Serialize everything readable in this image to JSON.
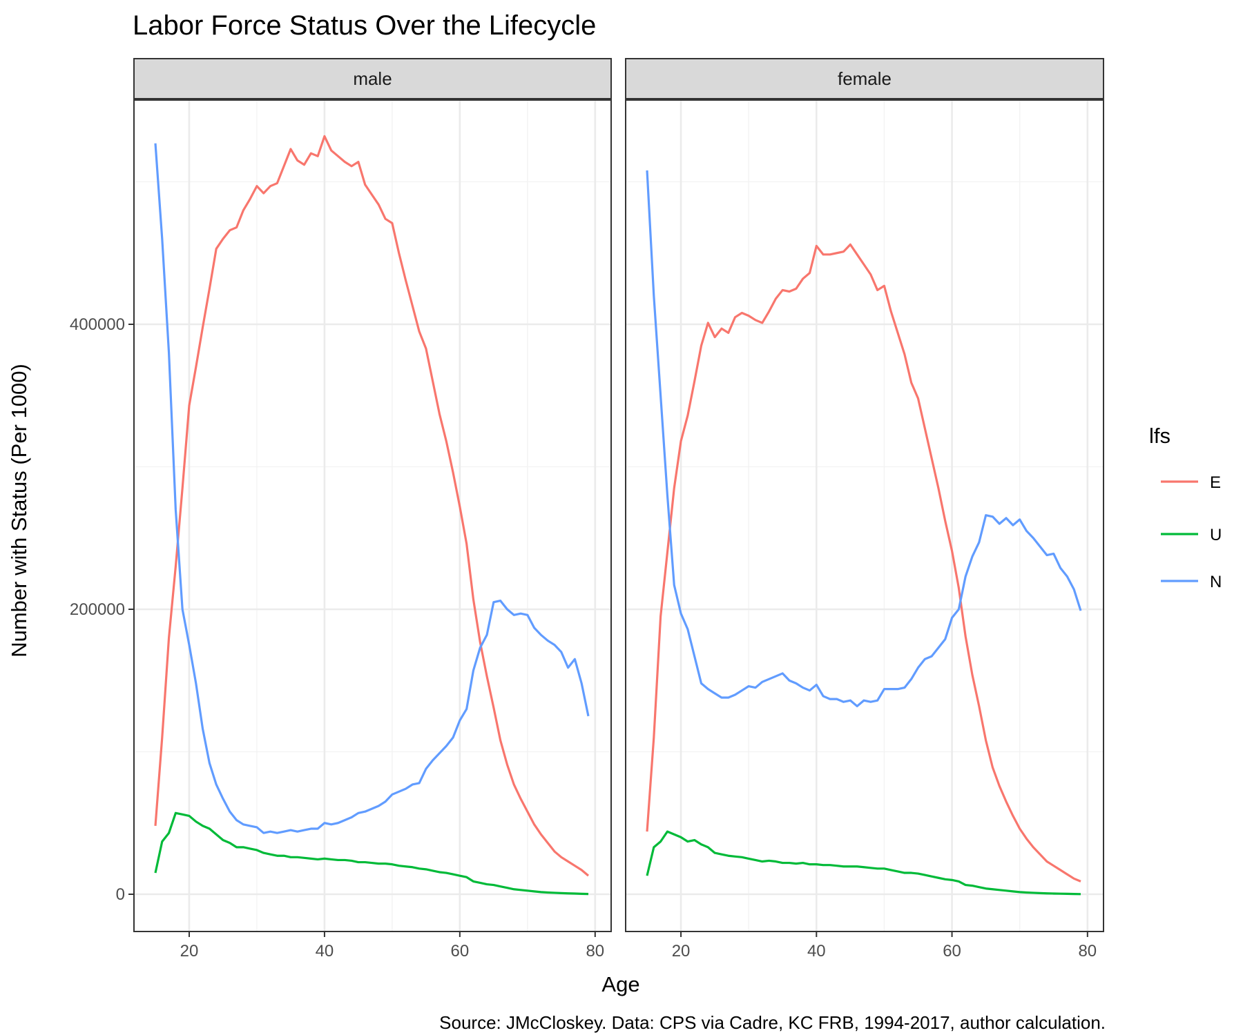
{
  "chart_data": {
    "type": "line",
    "title": "Labor Force Status Over the Lifecycle",
    "xlabel": "Age",
    "ylabel": "Number with Status (Per 1000)",
    "caption": "Source: JMcCloskey. Data: CPS via Cadre, KC FRB, 1994-2017, author calculation.",
    "xlim": [
      15,
      79
    ],
    "ylim": [
      -25000,
      556000
    ],
    "x_ticks": [
      20,
      40,
      60,
      80
    ],
    "x_tick_labels": [
      "20",
      "40",
      "60",
      "80"
    ],
    "y_ticks": [
      0,
      200000,
      400000
    ],
    "y_tick_labels": [
      "0",
      "200000",
      "400000"
    ],
    "grid": true,
    "legend": {
      "title": "lfs",
      "position": "right",
      "entries": [
        {
          "label": "E",
          "color": "#F8766D"
        },
        {
          "label": "U",
          "color": "#00BA38"
        },
        {
          "label": "N",
          "color": "#619CFF"
        }
      ]
    },
    "facets": [
      {
        "label": "male",
        "series": [
          {
            "name": "E",
            "color": "#F8766D",
            "x": [
              15,
              16,
              17,
              18,
              19,
              20,
              21,
              22,
              23,
              24,
              25,
              26,
              27,
              28,
              29,
              30,
              31,
              32,
              33,
              34,
              35,
              36,
              37,
              38,
              39,
              40,
              41,
              42,
              43,
              44,
              45,
              46,
              47,
              48,
              49,
              50,
              51,
              52,
              53,
              54,
              55,
              56,
              57,
              58,
              59,
              60,
              61,
              62,
              63,
              64,
              65,
              66,
              67,
              68,
              69,
              70,
              71,
              72,
              73,
              74,
              75,
              76,
              77,
              78,
              79
            ],
            "y": [
              48000,
              110000,
              180000,
              230000,
              285000,
              343000,
              370000,
              398000,
              425000,
              453000,
              460000,
              466000,
              468000,
              480000,
              488000,
              497000,
              492000,
              497000,
              499000,
              511000,
              523000,
              515000,
              512000,
              520000,
              518000,
              532000,
              522000,
              518000,
              514000,
              511000,
              514000,
              498000,
              491000,
              484000,
              474000,
              471000,
              450000,
              431000,
              413000,
              395000,
              383000,
              360000,
              337000,
              318000,
              296000,
              272000,
              246000,
              207000,
              177000,
              153000,
              131000,
              108000,
              91000,
              77000,
              67000,
              58000,
              49000,
              42000,
              36000,
              30000,
              26000,
              23000,
              20000,
              17000,
              13000
            ]
          },
          {
            "name": "U",
            "color": "#00BA38",
            "x": [
              15,
              16,
              17,
              18,
              19,
              20,
              21,
              22,
              23,
              24,
              25,
              26,
              27,
              28,
              29,
              30,
              31,
              32,
              33,
              34,
              35,
              36,
              37,
              38,
              39,
              40,
              41,
              42,
              43,
              44,
              45,
              46,
              47,
              48,
              49,
              50,
              51,
              52,
              53,
              54,
              55,
              56,
              57,
              58,
              59,
              60,
              61,
              62,
              63,
              64,
              65,
              66,
              67,
              68,
              69,
              70,
              71,
              72,
              73,
              74,
              75,
              76,
              77,
              78,
              79
            ],
            "y": [
              15000,
              37000,
              43000,
              57000,
              56000,
              55000,
              51000,
              48000,
              46000,
              42000,
              38000,
              36000,
              33000,
              33000,
              32000,
              31000,
              29000,
              28000,
              27000,
              27000,
              26000,
              26000,
              25500,
              25000,
              24500,
              25000,
              24500,
              24000,
              24000,
              23500,
              22500,
              22500,
              22000,
              21500,
              21500,
              21000,
              20000,
              19500,
              19000,
              18000,
              17500,
              16500,
              15500,
              15000,
              14000,
              13000,
              12000,
              9000,
              8000,
              7000,
              6500,
              5500,
              4500,
              3500,
              3000,
              2500,
              2000,
              1500,
              1200,
              1000,
              800,
              600,
              500,
              300,
              200
            ]
          },
          {
            "name": "N",
            "color": "#619CFF",
            "x": [
              15,
              16,
              17,
              18,
              19,
              20,
              21,
              22,
              23,
              24,
              25,
              26,
              27,
              28,
              29,
              30,
              31,
              32,
              33,
              34,
              35,
              36,
              37,
              38,
              39,
              40,
              41,
              42,
              43,
              44,
              45,
              46,
              47,
              48,
              49,
              50,
              51,
              52,
              53,
              54,
              55,
              56,
              57,
              58,
              59,
              60,
              61,
              62,
              63,
              64,
              65,
              66,
              67,
              68,
              69,
              70,
              71,
              72,
              73,
              74,
              75,
              76,
              77,
              78,
              79
            ],
            "y": [
              527000,
              460000,
              380000,
              270000,
              200000,
              175000,
              148000,
              116000,
              92000,
              77000,
              67000,
              58000,
              52000,
              49000,
              48000,
              47000,
              43000,
              44000,
              43000,
              44000,
              45000,
              44000,
              45000,
              46000,
              46000,
              50000,
              49000,
              50000,
              52000,
              54000,
              57000,
              58000,
              60000,
              62000,
              65000,
              70000,
              72000,
              74000,
              77000,
              78000,
              88000,
              94000,
              99000,
              104000,
              110000,
              122000,
              130000,
              157000,
              173000,
              182000,
              205000,
              206000,
              200000,
              196000,
              197000,
              196000,
              187000,
              182000,
              178000,
              175000,
              170000,
              159000,
              165000,
              148000,
              125000
            ]
          }
        ]
      },
      {
        "label": "female",
        "series": [
          {
            "name": "E",
            "color": "#F8766D",
            "x": [
              15,
              16,
              17,
              18,
              19,
              20,
              21,
              22,
              23,
              24,
              25,
              26,
              27,
              28,
              29,
              30,
              31,
              32,
              33,
              34,
              35,
              36,
              37,
              38,
              39,
              40,
              41,
              42,
              43,
              44,
              45,
              46,
              47,
              48,
              49,
              50,
              51,
              52,
              53,
              54,
              55,
              56,
              57,
              58,
              59,
              60,
              61,
              62,
              63,
              64,
              65,
              66,
              67,
              68,
              69,
              70,
              71,
              72,
              73,
              74,
              75,
              76,
              77,
              78,
              79
            ],
            "y": [
              44000,
              110000,
              195000,
              240000,
              285000,
              318000,
              336000,
              360000,
              385000,
              401000,
              391000,
              397000,
              394000,
              405000,
              408000,
              406000,
              403000,
              401000,
              409000,
              418000,
              424000,
              423000,
              425000,
              432000,
              436000,
              455000,
              449000,
              449000,
              450000,
              451000,
              456000,
              449000,
              442000,
              435000,
              424000,
              427000,
              409000,
              394000,
              379000,
              359000,
              348000,
              327000,
              306000,
              285000,
              262000,
              241000,
              215000,
              181000,
              154000,
              132000,
              108000,
              89000,
              76000,
              65000,
              55000,
              46000,
              39000,
              33000,
              28000,
              23000,
              20000,
              17000,
              14000,
              11000,
              9000
            ]
          },
          {
            "name": "U",
            "color": "#00BA38",
            "x": [
              15,
              16,
              17,
              18,
              19,
              20,
              21,
              22,
              23,
              24,
              25,
              26,
              27,
              28,
              29,
              30,
              31,
              32,
              33,
              34,
              35,
              36,
              37,
              38,
              39,
              40,
              41,
              42,
              43,
              44,
              45,
              46,
              47,
              48,
              49,
              50,
              51,
              52,
              53,
              54,
              55,
              56,
              57,
              58,
              59,
              60,
              61,
              62,
              63,
              64,
              65,
              66,
              67,
              68,
              69,
              70,
              71,
              72,
              73,
              74,
              75,
              76,
              77,
              78,
              79
            ],
            "y": [
              13000,
              33000,
              37000,
              44000,
              42000,
              40000,
              37000,
              38000,
              35000,
              33000,
              29000,
              28000,
              27000,
              26500,
              26000,
              25000,
              24000,
              23000,
              23500,
              23000,
              22000,
              22000,
              21500,
              22000,
              21000,
              21000,
              20500,
              20500,
              20000,
              19500,
              19500,
              19500,
              19000,
              18500,
              18000,
              18000,
              17000,
              16000,
              15000,
              15000,
              14500,
              13500,
              12500,
              11500,
              10500,
              10000,
              9000,
              6500,
              6000,
              5000,
              4000,
              3500,
              3000,
              2500,
              2000,
              1500,
              1200,
              1000,
              800,
              600,
              500,
              400,
              300,
              200,
              100
            ]
          },
          {
            "name": "N",
            "color": "#619CFF",
            "x": [
              15,
              16,
              17,
              18,
              19,
              20,
              21,
              22,
              23,
              24,
              25,
              26,
              27,
              28,
              29,
              30,
              31,
              32,
              33,
              34,
              35,
              36,
              37,
              38,
              39,
              40,
              41,
              42,
              43,
              44,
              45,
              46,
              47,
              48,
              49,
              50,
              51,
              52,
              53,
              54,
              55,
              56,
              57,
              58,
              59,
              60,
              61,
              62,
              63,
              64,
              65,
              66,
              67,
              68,
              69,
              70,
              71,
              72,
              73,
              74,
              75,
              76,
              77,
              78,
              79
            ],
            "y": [
              508000,
              420000,
              350000,
              280000,
              217000,
              197000,
              186000,
              167000,
              148000,
              144000,
              141000,
              138000,
              138000,
              140000,
              143000,
              146000,
              145000,
              149000,
              151000,
              153000,
              155000,
              150000,
              148000,
              145000,
              143000,
              147000,
              139000,
              137000,
              137000,
              135000,
              136000,
              132000,
              136000,
              135000,
              136000,
              144000,
              144000,
              144000,
              145000,
              151000,
              159000,
              165000,
              167000,
              173000,
              179000,
              194000,
              200000,
              223000,
              237000,
              247000,
              266000,
              265000,
              260000,
              264000,
              259000,
              263000,
              255000,
              250000,
              244000,
              238000,
              239000,
              229000,
              223000,
              214000,
              199000
            ]
          }
        ]
      }
    ]
  }
}
